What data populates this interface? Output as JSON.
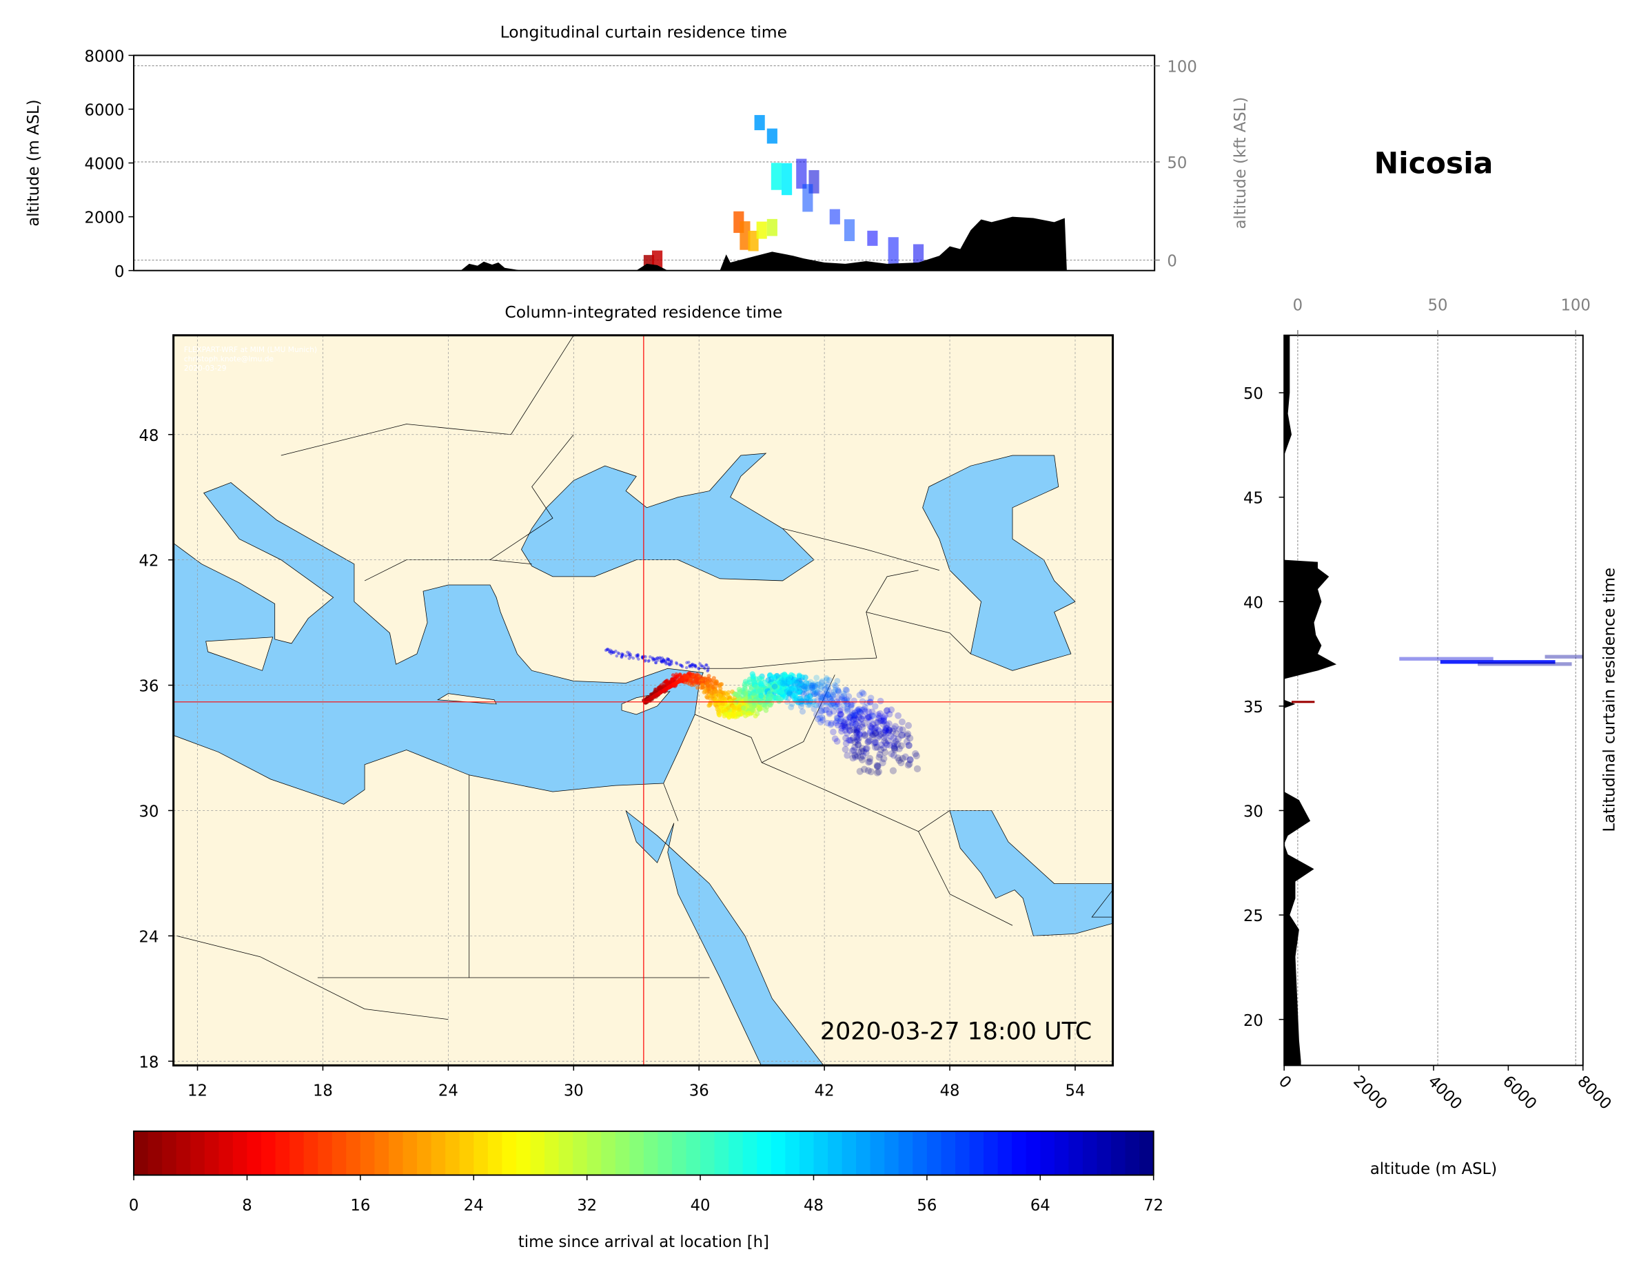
{
  "figure": {
    "location_title": "Nicosia",
    "timestamp": "2020-03-27 18:00 UTC",
    "credit": [
      "FLEXPART-WRF at MIM (LMU Munich)",
      "christoph.knote@lmu.de",
      "2020-03-29"
    ]
  },
  "chart_data": [
    {
      "id": "longitudinal",
      "type": "area",
      "title": "Longitudinal curtain residence time",
      "ylabel": "altitude (m ASL)",
      "ylabel_right": "altitude (kft ASL)",
      "ylim": [
        0,
        8000
      ],
      "yticks": [
        "0",
        "2000",
        "4000",
        "6000",
        "8000"
      ],
      "yticks_right": [
        "0",
        "50",
        "100"
      ],
      "grid": true,
      "terrain_lon_alt": [
        [
          24.6,
          0
        ],
        [
          25,
          250
        ],
        [
          25.4,
          180
        ],
        [
          25.7,
          330
        ],
        [
          26.1,
          220
        ],
        [
          26.4,
          300
        ],
        [
          26.7,
          100
        ],
        [
          27.5,
          0
        ],
        [
          33,
          0
        ],
        [
          33.5,
          250
        ],
        [
          34,
          200
        ],
        [
          34.5,
          0
        ],
        [
          37,
          0
        ],
        [
          37.3,
          600
        ],
        [
          37.5,
          300
        ],
        [
          38.5,
          500
        ],
        [
          39.5,
          700
        ],
        [
          40.5,
          550
        ],
        [
          41,
          450
        ],
        [
          42,
          300
        ],
        [
          43,
          250
        ],
        [
          44,
          350
        ],
        [
          45,
          250
        ],
        [
          46.5,
          300
        ],
        [
          47.5,
          550
        ],
        [
          48,
          900
        ],
        [
          48.5,
          800
        ],
        [
          49,
          1500
        ],
        [
          49.5,
          1900
        ],
        [
          50,
          1800
        ],
        [
          51,
          2000
        ],
        [
          52,
          1950
        ],
        [
          53,
          1800
        ],
        [
          53.5,
          1950
        ],
        [
          53.6,
          0
        ]
      ],
      "plume_lon_alt_time": [
        [
          33.6,
          300,
          3
        ],
        [
          34,
          150,
          5
        ],
        [
          37.9,
          1800,
          16
        ],
        [
          38.2,
          1300,
          18
        ],
        [
          38.6,
          1100,
          22
        ],
        [
          39,
          1500,
          28
        ],
        [
          39.5,
          1600,
          30
        ],
        [
          39.7,
          3500,
          44
        ],
        [
          40.2,
          3400,
          46
        ],
        [
          39.5,
          5000,
          52
        ],
        [
          38.9,
          5500,
          52
        ],
        [
          40.9,
          3600,
          64
        ],
        [
          41.5,
          3300,
          66
        ],
        [
          41.2,
          2700,
          58
        ],
        [
          42.5,
          2000,
          60
        ],
        [
          43.2,
          1500,
          58
        ],
        [
          44.3,
          1200,
          63
        ],
        [
          45.3,
          700,
          62
        ],
        [
          46.5,
          400,
          64
        ]
      ]
    },
    {
      "id": "map",
      "type": "scatter",
      "title": "Column-integrated residence time",
      "xticks": [
        "12",
        "18",
        "24",
        "30",
        "36",
        "42",
        "48",
        "54"
      ],
      "yticks": [
        "18",
        "24",
        "30",
        "36",
        "42",
        "48"
      ],
      "xlim": [
        10.85,
        55.8
      ],
      "ylim": [
        17.75,
        52.75
      ],
      "grid": true,
      "release_lon": 33.35,
      "release_lat": 35.2,
      "plume_path_lon_lat_time": [
        [
          33.4,
          35.2,
          0
        ],
        [
          34.2,
          35.8,
          4
        ],
        [
          35.2,
          36.4,
          10
        ],
        [
          36.2,
          36.2,
          16
        ],
        [
          37,
          35.4,
          22
        ],
        [
          37.6,
          34.8,
          26
        ],
        [
          38.3,
          35,
          32
        ],
        [
          38.8,
          35.6,
          38
        ],
        [
          39.5,
          36,
          44
        ],
        [
          40.5,
          35.8,
          50
        ],
        [
          42,
          35.5,
          56
        ],
        [
          43.5,
          34.5,
          62
        ],
        [
          44.5,
          33.5,
          67
        ],
        [
          45.2,
          32.5,
          72
        ]
      ]
    },
    {
      "id": "latitudinal",
      "type": "area",
      "title": "Latitudinal curtain residence time",
      "xlabel": "altitude (m ASL)",
      "xlim": [
        0,
        8000
      ],
      "xticks": [
        "0",
        "2000",
        "4000",
        "6000",
        "8000"
      ],
      "xticks_top": [
        "0",
        "50",
        "100"
      ],
      "yticks": [
        "20",
        "25",
        "30",
        "35",
        "40",
        "45",
        "50"
      ],
      "ylim": [
        17.75,
        52.75
      ],
      "terrain_lat_alt": [
        [
          52.75,
          150
        ],
        [
          50,
          150
        ],
        [
          49,
          100
        ],
        [
          48,
          200
        ],
        [
          47,
          0
        ],
        [
          42,
          0
        ],
        [
          41.9,
          900
        ],
        [
          41.6,
          900
        ],
        [
          41.2,
          1200
        ],
        [
          40.6,
          900
        ],
        [
          40,
          1000
        ],
        [
          39,
          800
        ],
        [
          38.4,
          850
        ],
        [
          37.9,
          1000
        ],
        [
          37.5,
          900
        ],
        [
          37,
          1400
        ],
        [
          36.7,
          900
        ],
        [
          36.3,
          0
        ],
        [
          35.3,
          0
        ],
        [
          35.1,
          300
        ],
        [
          34.9,
          0
        ],
        [
          30.9,
          0
        ],
        [
          30.5,
          400
        ],
        [
          29.5,
          700
        ],
        [
          28.8,
          100
        ],
        [
          28.4,
          0
        ],
        [
          27.9,
          100
        ],
        [
          27.2,
          800
        ],
        [
          26.6,
          300
        ],
        [
          25.8,
          300
        ],
        [
          25,
          150
        ],
        [
          24.3,
          400
        ],
        [
          23,
          300
        ],
        [
          21,
          350
        ],
        [
          19,
          400
        ],
        [
          18,
          450
        ],
        [
          17.75,
          450
        ]
      ],
      "plume_lat_alt_time": [
        [
          37.1,
          4600,
          62
        ],
        [
          37.25,
          5600,
          66
        ],
        [
          37.35,
          7400,
          70
        ],
        [
          37.0,
          7700,
          70
        ]
      ]
    },
    {
      "id": "colorbar",
      "type": "heatmap",
      "label": "time since arrival at location [h]",
      "range": [
        0,
        72
      ],
      "ticks": [
        "0",
        "8",
        "16",
        "24",
        "32",
        "40",
        "48",
        "56",
        "64",
        "72"
      ],
      "colormap": "jet_reversed"
    }
  ],
  "colors": {
    "sea": "#87cefa",
    "land": "#fef6dc",
    "terrain": "#000000",
    "crosshair": "#ff0000",
    "secondary_axis": "#808080"
  }
}
